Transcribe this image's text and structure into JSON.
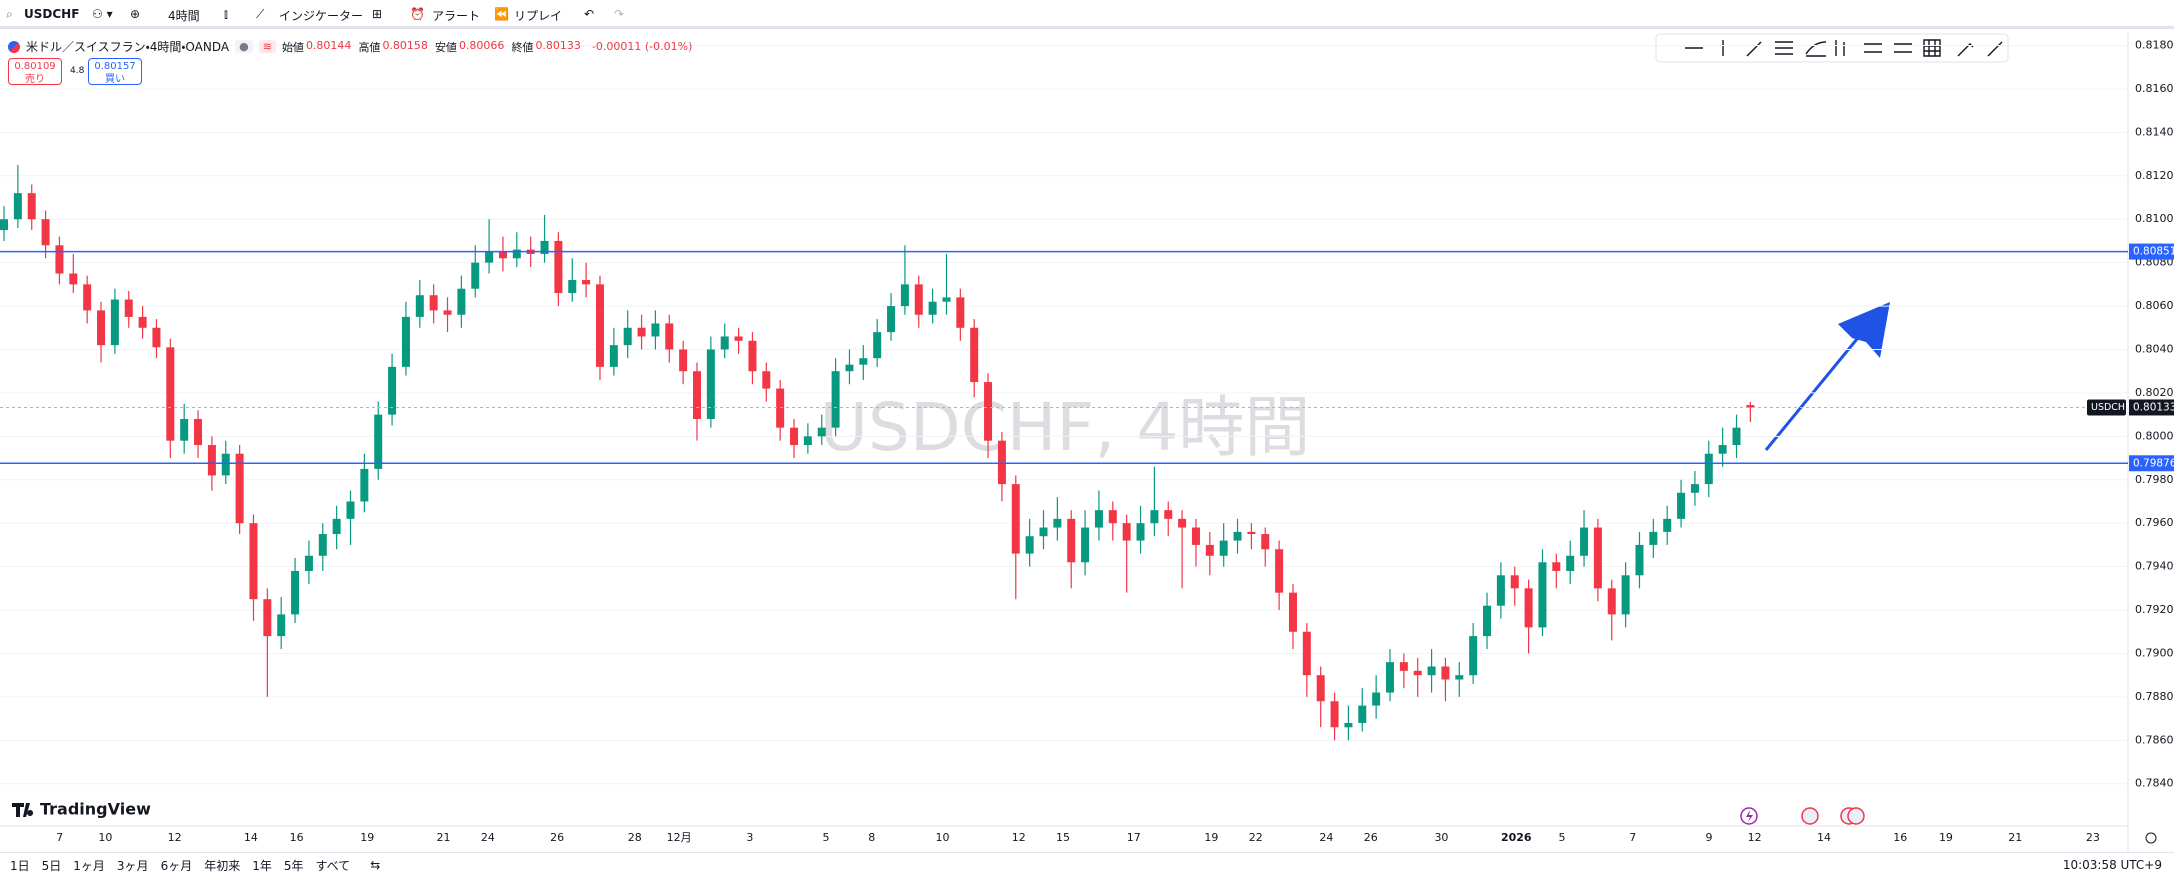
{
  "toolbar": {
    "symbol": "USDCHF",
    "interval": "4時間",
    "items": [
      "インジケーター",
      "アラート",
      "リプレイ"
    ]
  },
  "legend": {
    "title": "米ドル／スイスフラン・4時間・OANDA",
    "fields": [
      {
        "label": "始値",
        "value": 0.80144
      },
      {
        "label": "高値",
        "value": 0.80158
      },
      {
        "label": "安値",
        "value": 0.80066
      },
      {
        "label": "終値",
        "value": 0.80133
      }
    ],
    "change": "-0.00011 (-0.01%)",
    "sell": {
      "price": 0.80109,
      "label": "売り"
    },
    "spread": 4.8,
    "buy": {
      "price": 0.80157,
      "label": "買い"
    }
  },
  "chart": {
    "type": "candlestick",
    "watermark": "USDCHF, 4時間",
    "up_color": "#089981",
    "down_color": "#f23645",
    "grid": true,
    "ylim": [
      0.7821,
      0.8183
    ],
    "yticks": [
      {
        "value": 0.818,
        "label": "0.81800"
      },
      {
        "value": 0.816,
        "label": "0.81600"
      },
      {
        "value": 0.814,
        "label": "0.81400"
      },
      {
        "value": 0.812,
        "label": "0.81200"
      },
      {
        "value": 0.81,
        "label": "0.81000"
      },
      {
        "value": 0.808,
        "label": "0.80800"
      },
      {
        "value": 0.806,
        "label": "0.80600"
      },
      {
        "value": 0.804,
        "label": "0.80400"
      },
      {
        "value": 0.802,
        "label": "0.80200"
      },
      {
        "value": 0.8,
        "label": "0.80000"
      },
      {
        "value": 0.798,
        "label": "0.79800"
      },
      {
        "value": 0.796,
        "label": "0.79600"
      },
      {
        "value": 0.794,
        "label": "0.79400"
      },
      {
        "value": 0.792,
        "label": "0.79200"
      },
      {
        "value": 0.79,
        "label": "0.79000"
      },
      {
        "value": 0.788,
        "label": "0.78800"
      },
      {
        "value": 0.786,
        "label": "0.78600"
      },
      {
        "value": 0.784,
        "label": "0.78400"
      }
    ],
    "lines": [
      {
        "value": 0.80851,
        "color": "#2962ff"
      },
      {
        "value": 0.79876,
        "color": "#2962ff"
      }
    ],
    "last": {
      "name": "USDCHF",
      "value": 0.80133
    },
    "xlabels": [
      "7",
      "10",
      "12",
      "14",
      "16",
      "19",
      "21",
      "24",
      "26",
      "28",
      "12月",
      "3",
      "5",
      "8",
      "10",
      "12",
      "15",
      "17",
      "19",
      "22",
      "24",
      "26",
      "30",
      "2026",
      "5",
      "7",
      "9",
      "12",
      "14",
      "16",
      "19",
      "21",
      "23"
    ],
    "candles": [
      [
        0.8095,
        0.8106,
        0.809,
        0.81
      ],
      [
        0.81,
        0.8125,
        0.8096,
        0.8112
      ],
      [
        0.8112,
        0.8116,
        0.8095,
        0.81
      ],
      [
        0.81,
        0.8104,
        0.8082,
        0.8088
      ],
      [
        0.8088,
        0.8092,
        0.807,
        0.8075
      ],
      [
        0.8075,
        0.8084,
        0.8066,
        0.807
      ],
      [
        0.807,
        0.8074,
        0.8052,
        0.8058
      ],
      [
        0.8058,
        0.8062,
        0.8034,
        0.8042
      ],
      [
        0.8042,
        0.8068,
        0.8038,
        0.8063
      ],
      [
        0.8063,
        0.8067,
        0.805,
        0.8055
      ],
      [
        0.8055,
        0.806,
        0.8045,
        0.805
      ],
      [
        0.805,
        0.8054,
        0.8036,
        0.8041
      ],
      [
        0.8041,
        0.8045,
        0.799,
        0.7998
      ],
      [
        0.7998,
        0.8015,
        0.7992,
        0.8008
      ],
      [
        0.8008,
        0.8012,
        0.799,
        0.7996
      ],
      [
        0.7996,
        0.8,
        0.7975,
        0.7982
      ],
      [
        0.7982,
        0.7998,
        0.7978,
        0.7992
      ],
      [
        0.7992,
        0.7996,
        0.7955,
        0.796
      ],
      [
        0.796,
        0.7964,
        0.7915,
        0.7925
      ],
      [
        0.7925,
        0.793,
        0.788,
        0.7908
      ],
      [
        0.7908,
        0.7926,
        0.7902,
        0.7918
      ],
      [
        0.7918,
        0.7944,
        0.7914,
        0.7938
      ],
      [
        0.7938,
        0.7952,
        0.7932,
        0.7945
      ],
      [
        0.7945,
        0.796,
        0.7938,
        0.7955
      ],
      [
        0.7955,
        0.7968,
        0.7948,
        0.7962
      ],
      [
        0.7962,
        0.7975,
        0.795,
        0.797
      ],
      [
        0.797,
        0.7992,
        0.7965,
        0.7985
      ],
      [
        0.7985,
        0.8016,
        0.798,
        0.801
      ],
      [
        0.801,
        0.8038,
        0.8005,
        0.8032
      ],
      [
        0.8032,
        0.8062,
        0.8028,
        0.8055
      ],
      [
        0.8055,
        0.8072,
        0.805,
        0.8065
      ],
      [
        0.8065,
        0.807,
        0.8052,
        0.8058
      ],
      [
        0.8058,
        0.8064,
        0.8048,
        0.8056
      ],
      [
        0.8056,
        0.8074,
        0.805,
        0.8068
      ],
      [
        0.8068,
        0.8088,
        0.8064,
        0.808
      ],
      [
        0.808,
        0.81,
        0.8075,
        0.8085
      ],
      [
        0.8085,
        0.8092,
        0.8076,
        0.8082
      ],
      [
        0.8082,
        0.8094,
        0.8078,
        0.8086
      ],
      [
        0.8086,
        0.8092,
        0.8078,
        0.8084
      ],
      [
        0.8084,
        0.8102,
        0.808,
        0.809
      ],
      [
        0.809,
        0.8094,
        0.806,
        0.8066
      ],
      [
        0.8066,
        0.8082,
        0.8062,
        0.8072
      ],
      [
        0.8072,
        0.808,
        0.8064,
        0.807
      ],
      [
        0.807,
        0.8074,
        0.8026,
        0.8032
      ],
      [
        0.8032,
        0.805,
        0.8028,
        0.8042
      ],
      [
        0.8042,
        0.8058,
        0.8036,
        0.805
      ],
      [
        0.805,
        0.8056,
        0.804,
        0.8046
      ],
      [
        0.8046,
        0.8058,
        0.804,
        0.8052
      ],
      [
        0.8052,
        0.8056,
        0.8034,
        0.804
      ],
      [
        0.804,
        0.8044,
        0.8024,
        0.803
      ],
      [
        0.803,
        0.8034,
        0.7998,
        0.8008
      ],
      [
        0.8008,
        0.8046,
        0.8004,
        0.804
      ],
      [
        0.804,
        0.8052,
        0.8036,
        0.8046
      ],
      [
        0.8046,
        0.805,
        0.8038,
        0.8044
      ],
      [
        0.8044,
        0.8048,
        0.8024,
        0.803
      ],
      [
        0.803,
        0.8034,
        0.8016,
        0.8022
      ],
      [
        0.8022,
        0.8026,
        0.7998,
        0.8004
      ],
      [
        0.8004,
        0.8008,
        0.799,
        0.7996
      ],
      [
        0.7996,
        0.8006,
        0.7992,
        0.8
      ],
      [
        0.8,
        0.801,
        0.7996,
        0.8004
      ],
      [
        0.8004,
        0.8036,
        0.8,
        0.803
      ],
      [
        0.803,
        0.804,
        0.8024,
        0.8033
      ],
      [
        0.8033,
        0.8042,
        0.8026,
        0.8036
      ],
      [
        0.8036,
        0.8054,
        0.8032,
        0.8048
      ],
      [
        0.8048,
        0.8066,
        0.8044,
        0.806
      ],
      [
        0.806,
        0.8088,
        0.8056,
        0.807
      ],
      [
        0.807,
        0.8074,
        0.805,
        0.8056
      ],
      [
        0.8056,
        0.8068,
        0.8052,
        0.8062
      ],
      [
        0.8062,
        0.8084,
        0.8056,
        0.8064
      ],
      [
        0.8064,
        0.8068,
        0.8044,
        0.805
      ],
      [
        0.805,
        0.8054,
        0.8018,
        0.8025
      ],
      [
        0.8025,
        0.8029,
        0.799,
        0.7998
      ],
      [
        0.7998,
        0.8002,
        0.797,
        0.7978
      ],
      [
        0.7978,
        0.7982,
        0.7925,
        0.7946
      ],
      [
        0.7946,
        0.7962,
        0.794,
        0.7954
      ],
      [
        0.7954,
        0.7966,
        0.7948,
        0.7958
      ],
      [
        0.7958,
        0.7972,
        0.7952,
        0.7962
      ],
      [
        0.7962,
        0.7966,
        0.793,
        0.7942
      ],
      [
        0.7942,
        0.7966,
        0.7936,
        0.7958
      ],
      [
        0.7958,
        0.7975,
        0.7952,
        0.7966
      ],
      [
        0.7966,
        0.797,
        0.7952,
        0.796
      ],
      [
        0.796,
        0.7964,
        0.7928,
        0.7952
      ],
      [
        0.7952,
        0.7968,
        0.7946,
        0.796
      ],
      [
        0.796,
        0.7986,
        0.7954,
        0.7966
      ],
      [
        0.7966,
        0.797,
        0.7954,
        0.7962
      ],
      [
        0.7962,
        0.7966,
        0.793,
        0.7958
      ],
      [
        0.7958,
        0.7962,
        0.794,
        0.795
      ],
      [
        0.795,
        0.7956,
        0.7936,
        0.7945
      ],
      [
        0.7945,
        0.796,
        0.794,
        0.7952
      ],
      [
        0.7952,
        0.7962,
        0.7946,
        0.7956
      ],
      [
        0.7956,
        0.796,
        0.7948,
        0.7955
      ],
      [
        0.7955,
        0.7958,
        0.794,
        0.7948
      ],
      [
        0.7948,
        0.7952,
        0.792,
        0.7928
      ],
      [
        0.7928,
        0.7932,
        0.7902,
        0.791
      ],
      [
        0.791,
        0.7914,
        0.788,
        0.789
      ],
      [
        0.789,
        0.7894,
        0.7866,
        0.7878
      ],
      [
        0.7878,
        0.7882,
        0.786,
        0.7866
      ],
      [
        0.7866,
        0.7876,
        0.786,
        0.7868
      ],
      [
        0.7868,
        0.7884,
        0.7864,
        0.7876
      ],
      [
        0.7876,
        0.789,
        0.787,
        0.7882
      ],
      [
        0.7882,
        0.7902,
        0.7878,
        0.7896
      ],
      [
        0.7896,
        0.79,
        0.7884,
        0.7892
      ],
      [
        0.7892,
        0.7898,
        0.788,
        0.789
      ],
      [
        0.789,
        0.7902,
        0.7882,
        0.7894
      ],
      [
        0.7894,
        0.7898,
        0.7878,
        0.7888
      ],
      [
        0.7888,
        0.7896,
        0.788,
        0.789
      ],
      [
        0.789,
        0.7914,
        0.7886,
        0.7908
      ],
      [
        0.7908,
        0.7928,
        0.7902,
        0.7922
      ],
      [
        0.7922,
        0.7942,
        0.7916,
        0.7936
      ],
      [
        0.7936,
        0.794,
        0.7922,
        0.793
      ],
      [
        0.793,
        0.7934,
        0.79,
        0.7912
      ],
      [
        0.7912,
        0.7948,
        0.7908,
        0.7942
      ],
      [
        0.7942,
        0.7946,
        0.793,
        0.7938
      ],
      [
        0.7938,
        0.7952,
        0.7932,
        0.7945
      ],
      [
        0.7945,
        0.7966,
        0.794,
        0.7958
      ],
      [
        0.7958,
        0.7962,
        0.7924,
        0.793
      ],
      [
        0.793,
        0.7934,
        0.7906,
        0.7918
      ],
      [
        0.7918,
        0.7942,
        0.7912,
        0.7936
      ],
      [
        0.7936,
        0.7956,
        0.793,
        0.795
      ],
      [
        0.795,
        0.7962,
        0.7944,
        0.7956
      ],
      [
        0.7956,
        0.7968,
        0.795,
        0.7962
      ],
      [
        0.7962,
        0.798,
        0.7958,
        0.7974
      ],
      [
        0.7974,
        0.7984,
        0.7968,
        0.7978
      ],
      [
        0.7978,
        0.7998,
        0.7972,
        0.7992
      ],
      [
        0.7992,
        0.8004,
        0.7986,
        0.7996
      ],
      [
        0.7996,
        0.801,
        0.799,
        0.8004
      ],
      [
        0.80144,
        0.80158,
        0.80066,
        0.80133
      ]
    ]
  },
  "brand": "TradingView",
  "ranges": [
    "1日",
    "5日",
    "1ヶ月",
    "3ヶ月",
    "6ヶ月",
    "年初来",
    "1年",
    "5年",
    "すべて"
  ],
  "clock": "10:03:58 UTC+9"
}
